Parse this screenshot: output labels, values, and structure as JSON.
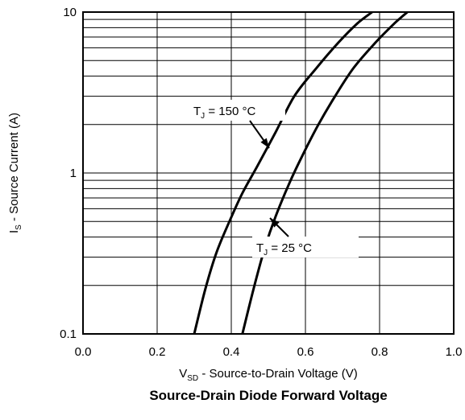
{
  "chart_data": {
    "type": "line",
    "title": "Source-Drain Diode Forward Voltage",
    "xlabel": {
      "main": "V",
      "sub": "SD",
      "rest": " - Source-to-Drain Voltage (V)"
    },
    "ylabel": {
      "main": "I",
      "sub": "S",
      "rest": " - Source Current (A)"
    },
    "xlim": [
      0.0,
      1.0
    ],
    "ylim": [
      0.1,
      10
    ],
    "yscale": "log",
    "grid": true,
    "x_ticks": [
      "0.0",
      "0.2",
      "0.4",
      "0.6",
      "0.8",
      "1.0"
    ],
    "y_ticks": [
      "0.1",
      "1",
      "10"
    ],
    "series": [
      {
        "name": "TJ = 150 °C",
        "x": [
          0.3,
          0.33,
          0.36,
          0.395,
          0.43,
          0.47,
          0.52,
          0.57,
          0.63,
          0.69,
          0.74,
          0.78
        ],
        "y": [
          0.1,
          0.19,
          0.32,
          0.5,
          0.75,
          1.1,
          1.8,
          3.0,
          4.5,
          6.5,
          8.5,
          10.0
        ]
      },
      {
        "name": "TJ = 25 °C",
        "x": [
          0.43,
          0.46,
          0.49,
          0.52,
          0.56,
          0.6,
          0.635,
          0.68,
          0.73,
          0.79,
          0.84,
          0.875
        ],
        "y": [
          0.1,
          0.19,
          0.34,
          0.54,
          0.9,
          1.4,
          2.0,
          3.0,
          4.5,
          6.5,
          8.5,
          10.0
        ]
      }
    ],
    "annotations": [
      {
        "main": "T",
        "sub": "J",
        "rest": " = 150 °C"
      },
      {
        "main": "T",
        "sub": "J",
        "rest": " = 25 °C"
      }
    ]
  }
}
